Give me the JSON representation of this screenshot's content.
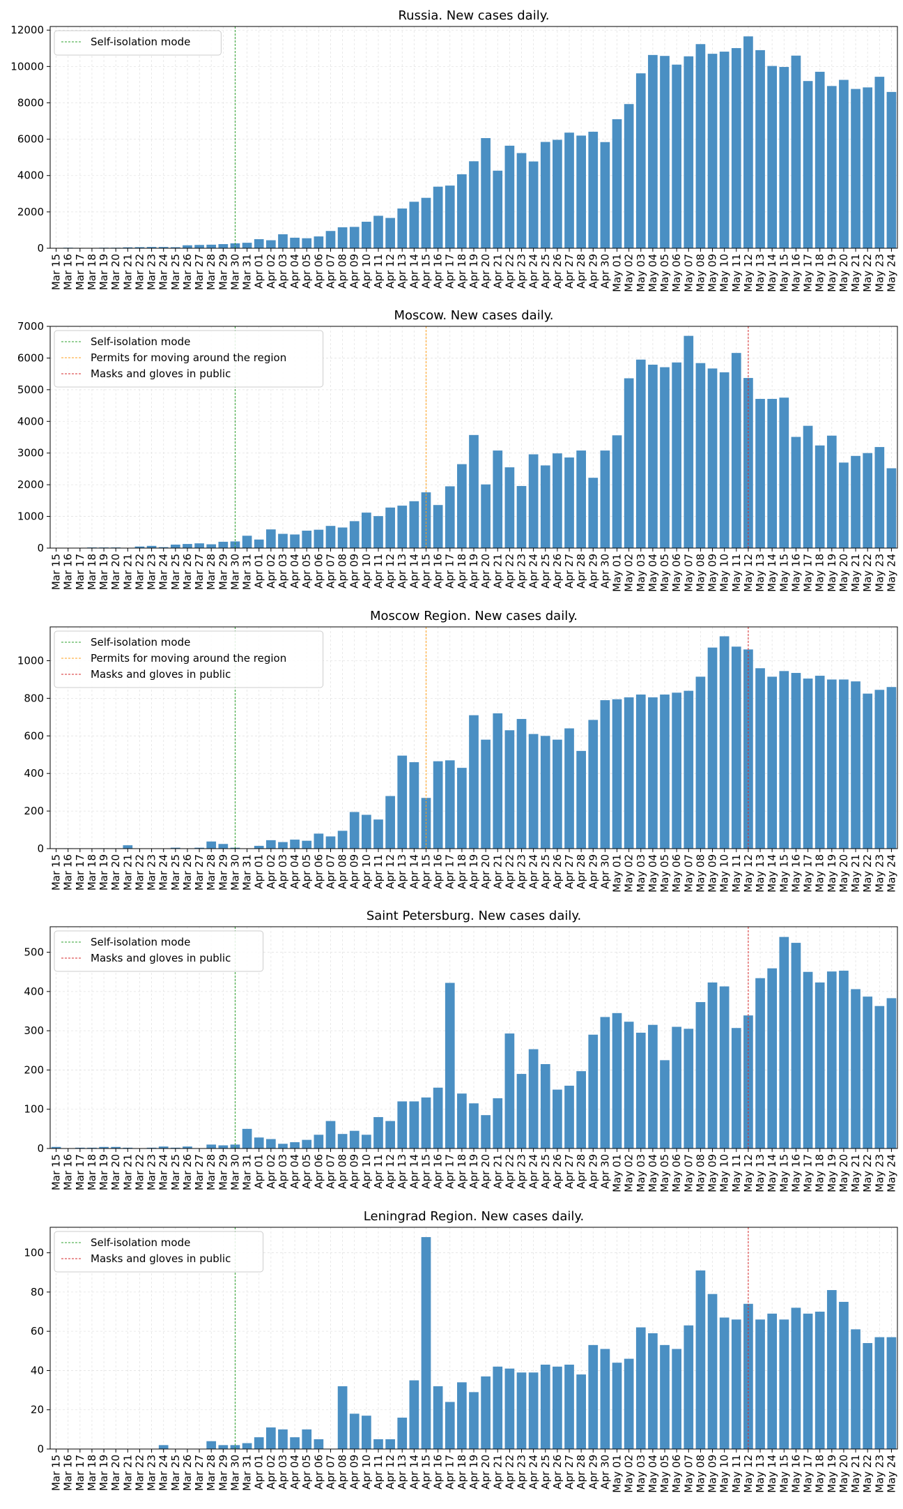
{
  "chart_data": [
    {
      "type": "bar",
      "title": "Russia. New cases daily.",
      "ylim": [
        0,
        12200
      ],
      "yticks": [
        0,
        2000,
        4000,
        6000,
        8000,
        10000,
        12000
      ],
      "grid": true,
      "legend_position": "top-left",
      "markers": [
        {
          "label": "Self-isolation mode",
          "date": "Mar 30",
          "color": "#2ca02c"
        }
      ],
      "bar_color": "#4a8fc3",
      "categories": [
        "Mar 15",
        "Mar 16",
        "Mar 17",
        "Mar 18",
        "Mar 19",
        "Mar 20",
        "Mar 21",
        "Mar 22",
        "Mar 23",
        "Mar 24",
        "Mar 25",
        "Mar 26",
        "Mar 27",
        "Mar 28",
        "Mar 29",
        "Mar 30",
        "Mar 31",
        "Apr 01",
        "Apr 02",
        "Apr 03",
        "Apr 04",
        "Apr 05",
        "Apr 06",
        "Apr 07",
        "Apr 08",
        "Apr 09",
        "Apr 10",
        "Apr 11",
        "Apr 12",
        "Apr 13",
        "Apr 14",
        "Apr 15",
        "Apr 16",
        "Apr 17",
        "Apr 18",
        "Apr 19",
        "Apr 20",
        "Apr 21",
        "Apr 22",
        "Apr 23",
        "Apr 24",
        "Apr 25",
        "Apr 26",
        "Apr 27",
        "Apr 28",
        "Apr 29",
        "Apr 30",
        "May 01",
        "May 02",
        "May 03",
        "May 04",
        "May 05",
        "May 06",
        "May 07",
        "May 08",
        "May 09",
        "May 10",
        "May 11",
        "May 12",
        "May 13",
        "May 14",
        "May 15",
        "May 16",
        "May 17",
        "May 18",
        "May 19",
        "May 20",
        "May 21",
        "May 22",
        "May 23",
        "May 24"
      ],
      "values": [
        0,
        30,
        20,
        20,
        30,
        30,
        50,
        60,
        70,
        70,
        57,
        163,
        182,
        196,
        228,
        270,
        302,
        500,
        440,
        770,
        580,
        550,
        650,
        950,
        1154,
        1175,
        1459,
        1786,
        1667,
        2186,
        2558,
        2774,
        3388,
        3448,
        4070,
        4785,
        6060,
        4268,
        5642,
        5236,
        4774,
        5849,
        5966,
        6361,
        6198,
        6411,
        5841,
        7099,
        7933,
        9623,
        10633,
        10581,
        10102,
        10559,
        11231,
        10699,
        10817,
        11012,
        11656,
        10899,
        10028,
        9974,
        10598,
        9200,
        9709,
        8926,
        9263,
        8764,
        8849,
        9434,
        8599
      ]
    },
    {
      "type": "bar",
      "title": "Moscow. New cases daily.",
      "ylim": [
        0,
        7000
      ],
      "yticks": [
        0,
        1000,
        2000,
        3000,
        4000,
        5000,
        6000,
        7000
      ],
      "grid": true,
      "legend_position": "top-left",
      "markers": [
        {
          "label": "Self-isolation mode",
          "date": "Mar 30",
          "color": "#2ca02c"
        },
        {
          "label": "Permits for moving around the region",
          "date": "Apr 15",
          "color": "#ff9f1c"
        },
        {
          "label": "Masks and gloves in public",
          "date": "May 12",
          "color": "#d62728"
        }
      ],
      "bar_color": "#4a8fc3",
      "categories": [
        "Mar 15",
        "Mar 16",
        "Mar 17",
        "Mar 18",
        "Mar 19",
        "Mar 20",
        "Mar 21",
        "Mar 22",
        "Mar 23",
        "Mar 24",
        "Mar 25",
        "Mar 26",
        "Mar 27",
        "Mar 28",
        "Mar 29",
        "Mar 30",
        "Mar 31",
        "Apr 01",
        "Apr 02",
        "Apr 03",
        "Apr 04",
        "Apr 05",
        "Apr 06",
        "Apr 07",
        "Apr 08",
        "Apr 09",
        "Apr 10",
        "Apr 11",
        "Apr 12",
        "Apr 13",
        "Apr 14",
        "Apr 15",
        "Apr 16",
        "Apr 17",
        "Apr 18",
        "Apr 19",
        "Apr 20",
        "Apr 21",
        "Apr 22",
        "Apr 23",
        "Apr 24",
        "Apr 25",
        "Apr 26",
        "Apr 27",
        "Apr 28",
        "Apr 29",
        "Apr 30",
        "May 01",
        "May 02",
        "May 03",
        "May 04",
        "May 05",
        "May 06",
        "May 07",
        "May 08",
        "May 09",
        "May 10",
        "May 11",
        "May 12",
        "May 13",
        "May 14",
        "May 15",
        "May 16",
        "May 17",
        "May 18",
        "May 19",
        "May 20",
        "May 21",
        "May 22",
        "May 23",
        "May 24"
      ],
      "values": [
        0,
        10,
        5,
        20,
        20,
        20,
        10,
        50,
        70,
        30,
        110,
        130,
        150,
        120,
        200,
        210,
        390,
        270,
        590,
        450,
        430,
        550,
        580,
        700,
        650,
        850,
        1120,
        1010,
        1280,
        1340,
        1480,
        1760,
        1360,
        1950,
        2650,
        3570,
        2010,
        3080,
        2550,
        1960,
        2960,
        2610,
        2990,
        2860,
        3080,
        2220,
        3080,
        3560,
        5360,
        5950,
        5790,
        5710,
        5860,
        6700,
        5840,
        5670,
        5550,
        6160,
        5370,
        4710,
        4710,
        4750,
        3510,
        3860,
        3240,
        3550,
        2700,
        2910,
        3000,
        3190,
        2520
      ]
    },
    {
      "type": "bar",
      "title": "Moscow Region. New cases daily.",
      "ylim": [
        0,
        1180
      ],
      "yticks": [
        0,
        200,
        400,
        600,
        800,
        1000
      ],
      "grid": true,
      "legend_position": "top-left",
      "markers": [
        {
          "label": "Self-isolation mode",
          "date": "Mar 30",
          "color": "#2ca02c"
        },
        {
          "label": "Permits for moving around the region",
          "date": "Apr 15",
          "color": "#ff9f1c"
        },
        {
          "label": "Masks and gloves in public",
          "date": "May 12",
          "color": "#d62728"
        }
      ],
      "bar_color": "#4a8fc3",
      "categories": [
        "Mar 15",
        "Mar 16",
        "Mar 17",
        "Mar 18",
        "Mar 19",
        "Mar 20",
        "Mar 21",
        "Mar 22",
        "Mar 23",
        "Mar 24",
        "Mar 25",
        "Mar 26",
        "Mar 27",
        "Mar 28",
        "Mar 29",
        "Mar 30",
        "Mar 31",
        "Apr 01",
        "Apr 02",
        "Apr 03",
        "Apr 04",
        "Apr 05",
        "Apr 06",
        "Apr 07",
        "Apr 08",
        "Apr 09",
        "Apr 10",
        "Apr 11",
        "Apr 12",
        "Apr 13",
        "Apr 14",
        "Apr 15",
        "Apr 16",
        "Apr 17",
        "Apr 18",
        "Apr 19",
        "Apr 20",
        "Apr 21",
        "Apr 22",
        "Apr 23",
        "Apr 24",
        "Apr 25",
        "Apr 26",
        "Apr 27",
        "Apr 28",
        "Apr 29",
        "Apr 30",
        "May 01",
        "May 02",
        "May 03",
        "May 04",
        "May 05",
        "May 06",
        "May 07",
        "May 08",
        "May 09",
        "May 10",
        "May 11",
        "May 12",
        "May 13",
        "May 14",
        "May 15",
        "May 16",
        "May 17",
        "May 18",
        "May 19",
        "May 20",
        "May 21",
        "May 22",
        "May 23",
        "May 24"
      ],
      "values": [
        0,
        2,
        0,
        0,
        2,
        2,
        18,
        0,
        0,
        0,
        5,
        0,
        5,
        38,
        25,
        5,
        0,
        15,
        45,
        35,
        48,
        42,
        80,
        65,
        95,
        195,
        180,
        155,
        280,
        495,
        460,
        270,
        465,
        470,
        430,
        710,
        580,
        720,
        630,
        690,
        610,
        600,
        580,
        640,
        520,
        685,
        790,
        795,
        805,
        820,
        805,
        820,
        830,
        840,
        915,
        1070,
        1130,
        1075,
        1060,
        960,
        915,
        945,
        935,
        905,
        920,
        900,
        900,
        890,
        825,
        845,
        860
      ]
    },
    {
      "type": "bar",
      "title": "Saint Petersburg. New cases daily.",
      "ylim": [
        0,
        565
      ],
      "yticks": [
        0,
        100,
        200,
        300,
        400,
        500
      ],
      "grid": true,
      "legend_position": "top-left",
      "markers": [
        {
          "label": "Self-isolation mode",
          "date": "Mar 30",
          "color": "#2ca02c"
        },
        {
          "label": "Masks and gloves in public",
          "date": "May 12",
          "color": "#d62728"
        }
      ],
      "bar_color": "#4a8fc3",
      "categories": [
        "Mar 15",
        "Mar 16",
        "Mar 17",
        "Mar 18",
        "Mar 19",
        "Mar 20",
        "Mar 21",
        "Mar 22",
        "Mar 23",
        "Mar 24",
        "Mar 25",
        "Mar 26",
        "Mar 27",
        "Mar 28",
        "Mar 29",
        "Mar 30",
        "Mar 31",
        "Apr 01",
        "Apr 02",
        "Apr 03",
        "Apr 04",
        "Apr 05",
        "Apr 06",
        "Apr 07",
        "Apr 08",
        "Apr 09",
        "Apr 10",
        "Apr 11",
        "Apr 12",
        "Apr 13",
        "Apr 14",
        "Apr 15",
        "Apr 16",
        "Apr 17",
        "Apr 18",
        "Apr 19",
        "Apr 20",
        "Apr 21",
        "Apr 22",
        "Apr 23",
        "Apr 24",
        "Apr 25",
        "Apr 26",
        "Apr 27",
        "Apr 28",
        "Apr 29",
        "Apr 30",
        "May 01",
        "May 02",
        "May 03",
        "May 04",
        "May 05",
        "May 06",
        "May 07",
        "May 08",
        "May 09",
        "May 10",
        "May 11",
        "May 12",
        "May 13",
        "May 14",
        "May 15",
        "May 16",
        "May 17",
        "May 18",
        "May 19",
        "May 20",
        "May 21",
        "May 22",
        "May 23",
        "May 24"
      ],
      "values": [
        4,
        0,
        2,
        2,
        4,
        4,
        2,
        0,
        2,
        5,
        2,
        5,
        0,
        10,
        8,
        10,
        50,
        28,
        24,
        12,
        16,
        22,
        35,
        70,
        37,
        45,
        35,
        80,
        70,
        120,
        120,
        130,
        155,
        422,
        140,
        115,
        85,
        128,
        293,
        190,
        253,
        215,
        150,
        160,
        197,
        290,
        335,
        345,
        323,
        295,
        315,
        225,
        310,
        305,
        373,
        423,
        413,
        307,
        339,
        434,
        459,
        539,
        524,
        450,
        423,
        451,
        453,
        406,
        387,
        363,
        383
      ]
    },
    {
      "type": "bar",
      "title": "Leningrad Region. New cases daily.",
      "ylim": [
        0,
        113
      ],
      "yticks": [
        0,
        20,
        40,
        60,
        80,
        100
      ],
      "grid": true,
      "legend_position": "top-left",
      "markers": [
        {
          "label": "Self-isolation mode",
          "date": "Mar 30",
          "color": "#2ca02c"
        },
        {
          "label": "Masks and gloves in public",
          "date": "May 12",
          "color": "#d62728"
        }
      ],
      "bar_color": "#4a8fc3",
      "categories": [
        "Mar 15",
        "Mar 16",
        "Mar 17",
        "Mar 18",
        "Mar 19",
        "Mar 20",
        "Mar 21",
        "Mar 22",
        "Mar 23",
        "Mar 24",
        "Mar 25",
        "Mar 26",
        "Mar 27",
        "Mar 28",
        "Mar 29",
        "Mar 30",
        "Mar 31",
        "Apr 01",
        "Apr 02",
        "Apr 03",
        "Apr 04",
        "Apr 05",
        "Apr 06",
        "Apr 07",
        "Apr 08",
        "Apr 09",
        "Apr 10",
        "Apr 11",
        "Apr 12",
        "Apr 13",
        "Apr 14",
        "Apr 15",
        "Apr 16",
        "Apr 17",
        "Apr 18",
        "Apr 19",
        "Apr 20",
        "Apr 21",
        "Apr 22",
        "Apr 23",
        "Apr 24",
        "Apr 25",
        "Apr 26",
        "Apr 27",
        "Apr 28",
        "Apr 29",
        "Apr 30",
        "May 01",
        "May 02",
        "May 03",
        "May 04",
        "May 05",
        "May 06",
        "May 07",
        "May 08",
        "May 09",
        "May 10",
        "May 11",
        "May 12",
        "May 13",
        "May 14",
        "May 15",
        "May 16",
        "May 17",
        "May 18",
        "May 19",
        "May 20",
        "May 21",
        "May 22",
        "May 23",
        "May 24"
      ],
      "values": [
        0,
        0,
        0,
        0,
        0,
        0,
        0,
        0,
        0,
        2,
        0,
        0,
        0,
        4,
        2,
        2,
        3,
        6,
        11,
        10,
        6,
        10,
        5,
        0,
        32,
        18,
        17,
        5,
        5,
        16,
        35,
        108,
        32,
        24,
        34,
        29,
        37,
        42,
        41,
        39,
        39,
        43,
        42,
        43,
        38,
        53,
        51,
        44,
        46,
        62,
        59,
        53,
        51,
        63,
        91,
        79,
        67,
        66,
        74,
        66,
        69,
        66,
        72,
        69,
        70,
        81,
        75,
        61,
        54,
        57,
        57
      ]
    }
  ]
}
